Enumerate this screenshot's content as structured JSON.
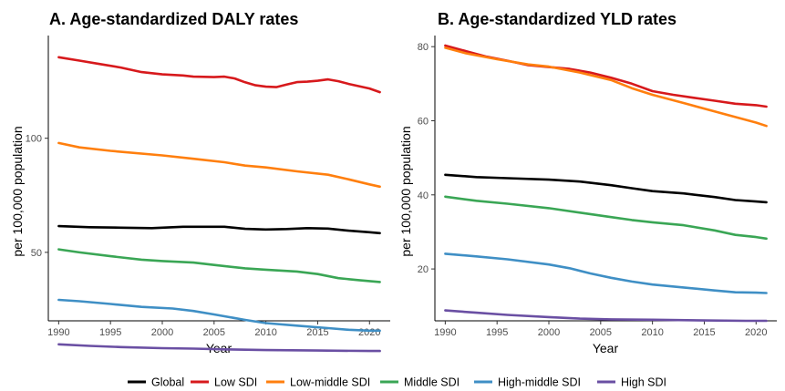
{
  "legend": [
    {
      "name": "Global",
      "color": "#000000"
    },
    {
      "name": "Low SDI",
      "color": "#d7191c"
    },
    {
      "name": "Low-middle SDI",
      "color": "#ff7f0e"
    },
    {
      "name": "Middle SDI",
      "color": "#3aa655"
    },
    {
      "name": "High-middle SDI",
      "color": "#3f8fc5"
    },
    {
      "name": "High SDI",
      "color": "#6a4fa3"
    }
  ],
  "chart_data": [
    {
      "type": "line",
      "title": "A. Age-standardized DALY rates",
      "xlabel": "Year",
      "ylabel": "per 100,000 population",
      "xlim": [
        1989,
        2022
      ],
      "ylim": [
        20,
        145
      ],
      "xticks": [
        1990,
        1995,
        2000,
        2005,
        2010,
        2015,
        2020
      ],
      "yticks": [
        50,
        100
      ],
      "grid": false,
      "series": [
        {
          "name": "Low SDI",
          "color": "#d7191c",
          "x": [
            1990,
            1992,
            1994,
            1996,
            1998,
            2000,
            2002,
            2003,
            2005,
            2006,
            2007,
            2008,
            2009,
            2010,
            2011,
            2012,
            2013,
            2014,
            2015,
            2016,
            2017,
            2018,
            2019,
            2020,
            2021
          ],
          "y": [
            135.5,
            134.0,
            132.5,
            131.0,
            129.0,
            128.0,
            127.5,
            127.0,
            126.8,
            127.0,
            126.2,
            124.5,
            123.2,
            122.6,
            122.4,
            123.5,
            124.6,
            124.8,
            125.2,
            125.8,
            125.0,
            123.8,
            122.8,
            121.8,
            120.2
          ]
        },
        {
          "name": "Low-middle SDI",
          "color": "#ff7f0e",
          "x": [
            1990,
            1992,
            1995,
            2000,
            2003,
            2006,
            2008,
            2010,
            2013,
            2016,
            2018,
            2020,
            2021
          ],
          "y": [
            97.9,
            96.0,
            94.5,
            92.5,
            91.0,
            89.5,
            88.0,
            87.2,
            85.5,
            84.0,
            82.0,
            79.8,
            78.8
          ]
        },
        {
          "name": "Global",
          "color": "#000000",
          "x": [
            1990,
            1993,
            1996,
            1999,
            2002,
            2006,
            2008,
            2010,
            2012,
            2014,
            2016,
            2018,
            2020,
            2021
          ],
          "y": [
            61.5,
            61.0,
            60.8,
            60.6,
            61.2,
            61.2,
            60.3,
            60.0,
            60.2,
            60.6,
            60.4,
            59.5,
            58.8,
            58.4
          ]
        },
        {
          "name": "Middle SDI",
          "color": "#3aa655",
          "x": [
            1990,
            1992,
            1995,
            1998,
            2000,
            2003,
            2005,
            2008,
            2010,
            2013,
            2015,
            2017,
            2019,
            2021
          ],
          "y": [
            51.3,
            50.0,
            48.3,
            46.8,
            46.2,
            45.5,
            44.5,
            43.0,
            42.4,
            41.6,
            40.5,
            38.7,
            37.8,
            37.0
          ]
        },
        {
          "name": "High-middle SDI",
          "color": "#3f8fc5",
          "x": [
            1990,
            1992,
            1995,
            1998,
            2001,
            2003,
            2005,
            2008,
            2010,
            2013,
            2016,
            2018,
            2020,
            2021
          ],
          "y": [
            29.2,
            28.6,
            27.4,
            26.1,
            25.4,
            24.3,
            22.8,
            20.4,
            19.0,
            17.9,
            16.8,
            16.1,
            15.7,
            15.7
          ]
        },
        {
          "name": "High SDI",
          "color": "#6a4fa3",
          "x": [
            1990,
            1993,
            1996,
            2000,
            2003,
            2006,
            2010,
            2015,
            2020,
            2021
          ],
          "y": [
            9.7,
            9.0,
            8.5,
            8.0,
            7.8,
            7.5,
            7.2,
            7.0,
            6.8,
            6.8
          ]
        }
      ]
    },
    {
      "type": "line",
      "title": "B. Age-standardized YLD rates",
      "xlabel": "Year",
      "ylabel": "per 100,000 population",
      "xlim": [
        1989,
        2022
      ],
      "ylim": [
        6,
        83
      ],
      "xticks": [
        1990,
        1995,
        2000,
        2005,
        2010,
        2015,
        2020
      ],
      "yticks": [
        20,
        40,
        60,
        80
      ],
      "grid": false,
      "series": [
        {
          "name": "Low SDI",
          "color": "#d7191c",
          "x": [
            1990,
            1992,
            1994,
            1996,
            1998,
            2000,
            2002,
            2004,
            2006,
            2008,
            2010,
            2012,
            2014,
            2016,
            2018,
            2020,
            2021
          ],
          "y": [
            80.3,
            78.8,
            77.3,
            76.2,
            75.0,
            74.5,
            74.0,
            73.0,
            71.6,
            70.0,
            68.0,
            67.0,
            66.2,
            65.4,
            64.6,
            64.2,
            63.8
          ]
        },
        {
          "name": "Low-middle SDI",
          "color": "#ff7f0e",
          "x": [
            1990,
            1992,
            1995,
            1998,
            2000,
            2003,
            2006,
            2008,
            2010,
            2013,
            2016,
            2018,
            2020,
            2021
          ],
          "y": [
            79.7,
            78.2,
            76.6,
            75.2,
            74.6,
            73.0,
            71.0,
            68.8,
            67.0,
            64.8,
            62.5,
            61.0,
            59.5,
            58.6
          ]
        },
        {
          "name": "Global",
          "color": "#000000",
          "x": [
            1990,
            1993,
            1996,
            2000,
            2003,
            2006,
            2008,
            2010,
            2013,
            2016,
            2018,
            2020,
            2021
          ],
          "y": [
            45.4,
            44.8,
            44.5,
            44.1,
            43.6,
            42.6,
            41.8,
            41.0,
            40.4,
            39.4,
            38.6,
            38.2,
            38.0
          ]
        },
        {
          "name": "Middle SDI",
          "color": "#3aa655",
          "x": [
            1990,
            1993,
            1996,
            2000,
            2003,
            2006,
            2008,
            2010,
            2013,
            2016,
            2018,
            2020,
            2021
          ],
          "y": [
            39.5,
            38.4,
            37.6,
            36.4,
            35.2,
            34.0,
            33.2,
            32.6,
            31.8,
            30.4,
            29.2,
            28.6,
            28.2
          ]
        },
        {
          "name": "High-middle SDI",
          "color": "#3f8fc5",
          "x": [
            1990,
            1993,
            1996,
            2000,
            2002,
            2004,
            2006,
            2008,
            2010,
            2013,
            2016,
            2018,
            2020,
            2021
          ],
          "y": [
            24.1,
            23.4,
            22.6,
            21.2,
            20.2,
            18.8,
            17.6,
            16.6,
            15.8,
            15.0,
            14.2,
            13.7,
            13.6,
            13.5
          ]
        },
        {
          "name": "High SDI",
          "color": "#6a4fa3",
          "x": [
            1990,
            1993,
            1996,
            2000,
            2003,
            2006,
            2010,
            2015,
            2019,
            2021
          ],
          "y": [
            8.8,
            8.2,
            7.6,
            7.0,
            6.6,
            6.4,
            6.3,
            6.1,
            6.0,
            6.0
          ]
        }
      ]
    }
  ]
}
